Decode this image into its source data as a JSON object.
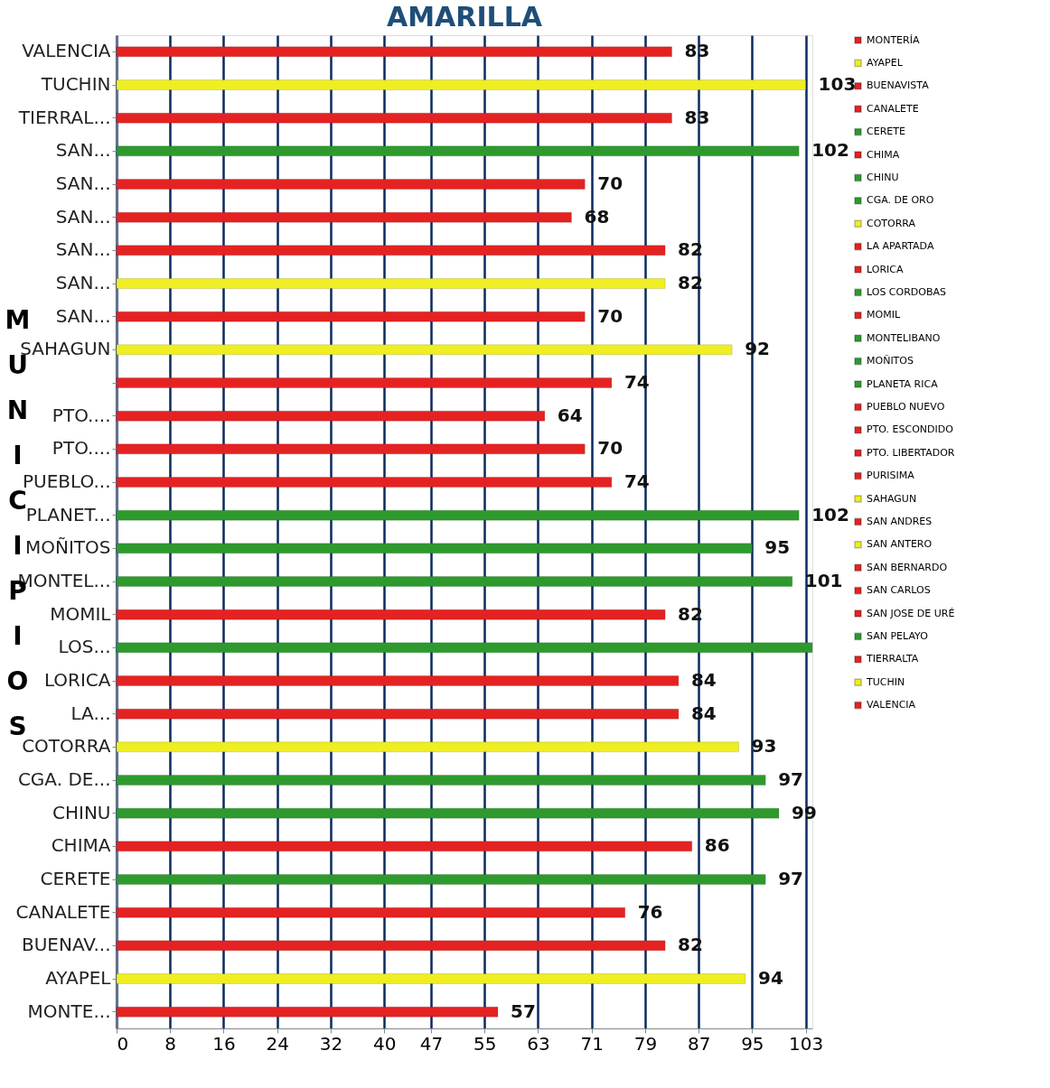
{
  "chart_data": {
    "type": "bar",
    "orientation": "horizontal",
    "title": "AMARILLA",
    "ylabel": "MUNICIPIOS",
    "categories": [
      "VALENCIA",
      "TUCHIN",
      "TIERRAL...",
      "SAN...",
      "SAN...",
      "SAN...",
      "SAN...",
      "SAN...",
      "SAN...",
      "SAHAGUN",
      null,
      "PTO....",
      "PTO....",
      "PUEBLO...",
      "PLANET...",
      "MOÑITOS",
      "MONTEL...",
      "MOMIL",
      "LOS...",
      "LORICA",
      "LA...",
      "COTORRA",
      "CGA. DE...",
      "CHINU",
      "CHIMA",
      "CERETE",
      "CANALETE",
      "BUENAV...",
      "AYAPEL",
      "MONTE..."
    ],
    "series": [
      {
        "name": "MONTERÍA",
        "color": "#e52222",
        "values": [
          null,
          null,
          null,
          null,
          null,
          null,
          null,
          null,
          null,
          null,
          null,
          null,
          null,
          null,
          null,
          null,
          null,
          null,
          null,
          null,
          null,
          null,
          null,
          null,
          null,
          null,
          null,
          null,
          null,
          57
        ]
      },
      {
        "name": "AYAPEL",
        "color": "#eeee22",
        "values": [
          null,
          null,
          null,
          null,
          null,
          null,
          null,
          null,
          null,
          null,
          null,
          null,
          null,
          null,
          null,
          null,
          null,
          null,
          null,
          null,
          null,
          null,
          null,
          null,
          null,
          null,
          null,
          null,
          94,
          null
        ]
      },
      {
        "name": "BUENAVISTA",
        "color": "#e52222",
        "values": [
          null,
          null,
          null,
          null,
          null,
          null,
          null,
          null,
          null,
          null,
          null,
          null,
          null,
          null,
          null,
          null,
          null,
          null,
          null,
          null,
          null,
          null,
          null,
          null,
          null,
          null,
          null,
          82,
          null,
          null
        ]
      },
      {
        "name": "CANALETE",
        "color": "#e52222",
        "values": [
          null,
          null,
          null,
          null,
          null,
          null,
          null,
          null,
          null,
          null,
          null,
          null,
          null,
          null,
          null,
          null,
          null,
          null,
          null,
          null,
          null,
          null,
          null,
          null,
          null,
          null,
          76,
          null,
          null,
          null
        ]
      },
      {
        "name": "CERETE",
        "color": "#2e9a2e",
        "values": [
          null,
          null,
          null,
          null,
          null,
          null,
          null,
          null,
          null,
          null,
          null,
          null,
          null,
          null,
          null,
          null,
          null,
          null,
          null,
          null,
          null,
          null,
          null,
          null,
          null,
          97,
          null,
          null,
          null,
          null
        ]
      },
      {
        "name": "CHIMA",
        "color": "#e52222",
        "values": [
          null,
          null,
          null,
          null,
          null,
          null,
          null,
          null,
          null,
          null,
          null,
          null,
          null,
          null,
          null,
          null,
          null,
          null,
          null,
          null,
          null,
          null,
          null,
          null,
          86,
          null,
          null,
          null,
          null,
          null
        ]
      },
      {
        "name": "CHINU",
        "color": "#2e9a2e",
        "values": [
          null,
          null,
          null,
          null,
          null,
          null,
          null,
          null,
          null,
          null,
          null,
          null,
          null,
          null,
          null,
          null,
          null,
          null,
          null,
          null,
          null,
          null,
          null,
          99,
          null,
          null,
          null,
          null,
          null,
          null
        ]
      },
      {
        "name": "CGA. DE ORO",
        "color": "#2e9a2e",
        "values": [
          null,
          null,
          null,
          null,
          null,
          null,
          null,
          null,
          null,
          null,
          null,
          null,
          null,
          null,
          null,
          null,
          null,
          null,
          null,
          null,
          null,
          null,
          97,
          null,
          null,
          null,
          null,
          null,
          null,
          null
        ]
      },
      {
        "name": "COTORRA",
        "color": "#eeee22",
        "values": [
          null,
          null,
          null,
          null,
          null,
          null,
          null,
          null,
          null,
          null,
          null,
          null,
          null,
          null,
          null,
          null,
          null,
          null,
          null,
          null,
          null,
          93,
          null,
          null,
          null,
          null,
          null,
          null,
          null,
          null
        ]
      },
      {
        "name": "LA APARTADA",
        "color": "#e52222",
        "values": [
          null,
          null,
          null,
          null,
          null,
          null,
          null,
          null,
          null,
          null,
          null,
          null,
          null,
          null,
          null,
          null,
          null,
          null,
          null,
          null,
          84,
          null,
          null,
          null,
          null,
          null,
          null,
          null,
          null,
          null
        ]
      },
      {
        "name": "LORICA",
        "color": "#e52222",
        "values": [
          null,
          null,
          null,
          null,
          null,
          null,
          null,
          null,
          null,
          null,
          null,
          null,
          null,
          null,
          null,
          null,
          null,
          null,
          null,
          84,
          null,
          null,
          null,
          null,
          null,
          null,
          null,
          null,
          null,
          null
        ]
      },
      {
        "name": "LOS CORDOBAS",
        "color": "#2e9a2e",
        "values": [
          null,
          null,
          null,
          null,
          null,
          null,
          null,
          null,
          null,
          null,
          null,
          null,
          null,
          null,
          null,
          null,
          null,
          null,
          104,
          null,
          null,
          null,
          null,
          null,
          null,
          null,
          null,
          null,
          null,
          null
        ],
        "value_labels": [
          null,
          null,
          null,
          null,
          null,
          null,
          null,
          null,
          null,
          null,
          null,
          null,
          null,
          null,
          null,
          null,
          null,
          null,
          null,
          null,
          null,
          null,
          null,
          null,
          null,
          null,
          null,
          null,
          null,
          null
        ]
      },
      {
        "name": "MOMIL",
        "color": "#e52222",
        "values": [
          null,
          null,
          null,
          null,
          null,
          null,
          null,
          null,
          null,
          null,
          null,
          null,
          null,
          null,
          null,
          null,
          null,
          82,
          null,
          null,
          null,
          null,
          null,
          null,
          null,
          null,
          null,
          null,
          null,
          null
        ]
      },
      {
        "name": "MONTELIBANO",
        "color": "#2e9a2e",
        "values": [
          null,
          null,
          null,
          null,
          null,
          null,
          null,
          null,
          null,
          null,
          null,
          null,
          null,
          null,
          null,
          null,
          101,
          null,
          null,
          null,
          null,
          null,
          null,
          null,
          null,
          null,
          null,
          null,
          null,
          null
        ]
      },
      {
        "name": "MOÑITOS",
        "color": "#2e9a2e",
        "values": [
          null,
          null,
          null,
          null,
          null,
          null,
          null,
          null,
          null,
          null,
          null,
          null,
          null,
          null,
          null,
          95,
          null,
          null,
          null,
          null,
          null,
          null,
          null,
          null,
          null,
          null,
          null,
          null,
          null,
          null
        ]
      },
      {
        "name": "PLANETA RICA",
        "color": "#2e9a2e",
        "values": [
          null,
          null,
          null,
          null,
          null,
          null,
          null,
          null,
          null,
          null,
          null,
          null,
          null,
          null,
          102,
          null,
          null,
          null,
          null,
          null,
          null,
          null,
          null,
          null,
          null,
          null,
          null,
          null,
          null,
          null
        ]
      },
      {
        "name": "PUEBLO NUEVO",
        "color": "#e52222",
        "values": [
          null,
          null,
          null,
          null,
          null,
          null,
          null,
          null,
          null,
          null,
          null,
          null,
          null,
          74,
          null,
          null,
          null,
          null,
          null,
          null,
          null,
          null,
          null,
          null,
          null,
          null,
          null,
          null,
          null,
          null
        ]
      },
      {
        "name": "PTO. ESCONDIDO",
        "color": "#e52222",
        "values": [
          null,
          null,
          null,
          null,
          null,
          null,
          null,
          null,
          null,
          null,
          null,
          null,
          70,
          null,
          null,
          null,
          null,
          null,
          null,
          null,
          null,
          null,
          null,
          null,
          null,
          null,
          null,
          null,
          null,
          null
        ]
      },
      {
        "name": "PTO. LIBERTADOR",
        "color": "#e52222",
        "values": [
          null,
          null,
          null,
          null,
          null,
          null,
          null,
          null,
          null,
          null,
          null,
          64,
          null,
          null,
          null,
          null,
          null,
          null,
          null,
          null,
          null,
          null,
          null,
          null,
          null,
          null,
          null,
          null,
          null,
          null
        ]
      },
      {
        "name": "PURISIMA",
        "color": "#e52222",
        "values": [
          null,
          null,
          null,
          null,
          null,
          null,
          null,
          null,
          null,
          null,
          74,
          null,
          null,
          null,
          null,
          null,
          null,
          null,
          null,
          null,
          null,
          null,
          null,
          null,
          null,
          null,
          null,
          null,
          null,
          null
        ]
      },
      {
        "name": "SAHAGUN",
        "color": "#eeee22",
        "values": [
          null,
          null,
          null,
          null,
          null,
          null,
          null,
          null,
          null,
          92,
          null,
          null,
          null,
          null,
          null,
          null,
          null,
          null,
          null,
          null,
          null,
          null,
          null,
          null,
          null,
          null,
          null,
          null,
          null,
          null
        ]
      },
      {
        "name": "SAN ANDRES",
        "color": "#e52222",
        "values": [
          null,
          null,
          null,
          null,
          null,
          null,
          null,
          null,
          70,
          null,
          null,
          null,
          null,
          null,
          null,
          null,
          null,
          null,
          null,
          null,
          null,
          null,
          null,
          null,
          null,
          null,
          null,
          null,
          null,
          null
        ]
      },
      {
        "name": "SAN ANTERO",
        "color": "#eeee22",
        "values": [
          null,
          null,
          null,
          null,
          null,
          null,
          null,
          82,
          null,
          null,
          null,
          null,
          null,
          null,
          null,
          null,
          null,
          null,
          null,
          null,
          null,
          null,
          null,
          null,
          null,
          null,
          null,
          null,
          null,
          null
        ]
      },
      {
        "name": "SAN BERNARDO",
        "color": "#e52222",
        "values": [
          null,
          null,
          null,
          null,
          null,
          null,
          82,
          null,
          null,
          null,
          null,
          null,
          null,
          null,
          null,
          null,
          null,
          null,
          null,
          null,
          null,
          null,
          null,
          null,
          null,
          null,
          null,
          null,
          null,
          null
        ]
      },
      {
        "name": "SAN CARLOS",
        "color": "#e52222",
        "values": [
          null,
          null,
          null,
          null,
          null,
          68,
          null,
          null,
          null,
          null,
          null,
          null,
          null,
          null,
          null,
          null,
          null,
          null,
          null,
          null,
          null,
          null,
          null,
          null,
          null,
          null,
          null,
          null,
          null,
          null
        ]
      },
      {
        "name": "SAN JOSE DE URÉ",
        "color": "#e52222",
        "values": [
          null,
          null,
          null,
          null,
          70,
          null,
          null,
          null,
          null,
          null,
          null,
          null,
          null,
          null,
          null,
          null,
          null,
          null,
          null,
          null,
          null,
          null,
          null,
          null,
          null,
          null,
          null,
          null,
          null,
          null
        ]
      },
      {
        "name": "SAN PELAYO",
        "color": "#2e9a2e",
        "values": [
          null,
          null,
          null,
          102,
          null,
          null,
          null,
          null,
          null,
          null,
          null,
          null,
          null,
          null,
          null,
          null,
          null,
          null,
          null,
          null,
          null,
          null,
          null,
          null,
          null,
          null,
          null,
          null,
          null,
          null
        ]
      },
      {
        "name": "TIERRALTA",
        "color": "#e52222",
        "values": [
          null,
          null,
          83,
          null,
          null,
          null,
          null,
          null,
          null,
          null,
          null,
          null,
          null,
          null,
          null,
          null,
          null,
          null,
          null,
          null,
          null,
          null,
          null,
          null,
          null,
          null,
          null,
          null,
          null,
          null
        ]
      },
      {
        "name": "TUCHIN",
        "color": "#eeee22",
        "values": [
          null,
          103,
          null,
          null,
          null,
          null,
          null,
          null,
          null,
          null,
          null,
          null,
          null,
          null,
          null,
          null,
          null,
          null,
          null,
          null,
          null,
          null,
          null,
          null,
          null,
          null,
          null,
          null,
          null,
          null
        ]
      },
      {
        "name": "VALENCIA",
        "color": "#e52222",
        "values": [
          83,
          null,
          null,
          null,
          null,
          null,
          null,
          null,
          null,
          null,
          null,
          null,
          null,
          null,
          null,
          null,
          null,
          null,
          null,
          null,
          null,
          null,
          null,
          null,
          null,
          null,
          null,
          null,
          null,
          null
        ]
      }
    ],
    "data_labels": true,
    "xlim": [
      0,
      104
    ],
    "xticks": [
      0,
      8,
      16,
      24,
      32,
      40,
      47,
      55,
      63,
      71,
      79,
      87,
      95,
      103
    ],
    "grid": "x",
    "legend": "right"
  }
}
